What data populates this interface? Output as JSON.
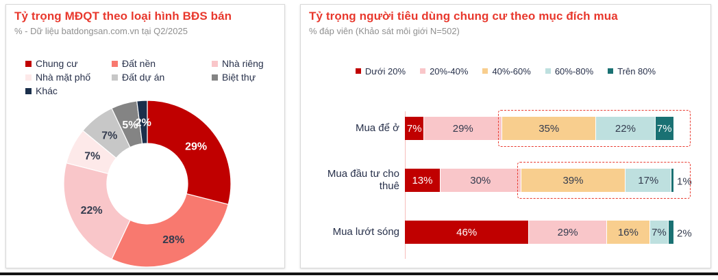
{
  "styles": {
    "title_color": "#E8382D",
    "subtitle_color": "#8F8F8F",
    "text_dark": "#333B4E",
    "legend_text_color": "#27304A",
    "panel_border_color": "#D8D8D8",
    "axis_line_color": "#F6BDBB",
    "highlight_border_color": "#E8382D",
    "bottom_rule_color": "#141414",
    "background": "#FFFFFF"
  },
  "chart_data": [
    {
      "type": "pie",
      "subtype": "donut",
      "title": "Tỷ trọng MĐQT theo loại hình BĐS bán",
      "subtitle": "% - Dữ liệu batdongsan.com.vn tại Q2/2025",
      "unit": "%",
      "legend_position": "top-left",
      "start_angle_deg": 0,
      "direction": "clockwise",
      "categories": [
        "Chung cư",
        "Đất nền",
        "Nhà riêng",
        "Nhà mặt phố",
        "Đất dự án",
        "Biệt thự",
        "Khác"
      ],
      "values": [
        29,
        28,
        22,
        7,
        7,
        5,
        2
      ],
      "colors": [
        "#C00000",
        "#F8796F",
        "#F9C6C9",
        "#FDE9E9",
        "#C7C7C7",
        "#848484",
        "#1B2F4B"
      ],
      "value_label_colors": [
        "#FFFFFF",
        "#333B4E",
        "#333B4E",
        "#333B4E",
        "#333B4E",
        "#FFFFFF",
        "#FFFFFF"
      ]
    },
    {
      "type": "bar",
      "stacked": true,
      "orientation": "horizontal",
      "title": "Tỷ trọng người tiêu dùng chung cư theo mục đích mua",
      "subtitle": "% đáp viên (Khảo sát môi giới N=502)",
      "unit": "%",
      "xlim": [
        0,
        100
      ],
      "legend_position": "top-center",
      "categories": [
        "Mua để ở",
        "Mua đầu tư cho thuê",
        "Mua lướt sóng"
      ],
      "series": [
        {
          "name": "Dưới 20%",
          "color": "#C00000",
          "label_color": "#FFFFFF",
          "values": [
            7,
            13,
            46
          ]
        },
        {
          "name": "20%-40%",
          "color": "#F9C6C9",
          "label_color": "#333B4E",
          "values": [
            29,
            30,
            29
          ]
        },
        {
          "name": "40%-60%",
          "color": "#F8CE8E",
          "label_color": "#333B4E",
          "values": [
            35,
            39,
            16
          ]
        },
        {
          "name": "60%-80%",
          "color": "#BEE0DF",
          "label_color": "#333B4E",
          "values": [
            22,
            17,
            7
          ]
        },
        {
          "name": "Trên 80%",
          "color": "#1A7173",
          "label_color": "#FFFFFF",
          "values": [
            7,
            1,
            2
          ]
        }
      ],
      "annotations": {
        "highlight_boxes": [
          {
            "category": "Mua để ở",
            "series_from": "40%-60%",
            "series_to": "Trên 80%",
            "style": "red-dashed"
          },
          {
            "category": "Mua đầu tư cho thuê",
            "series_from": "40%-60%",
            "series_to": "Trên 80%",
            "style": "red-dashed"
          }
        ]
      }
    }
  ]
}
